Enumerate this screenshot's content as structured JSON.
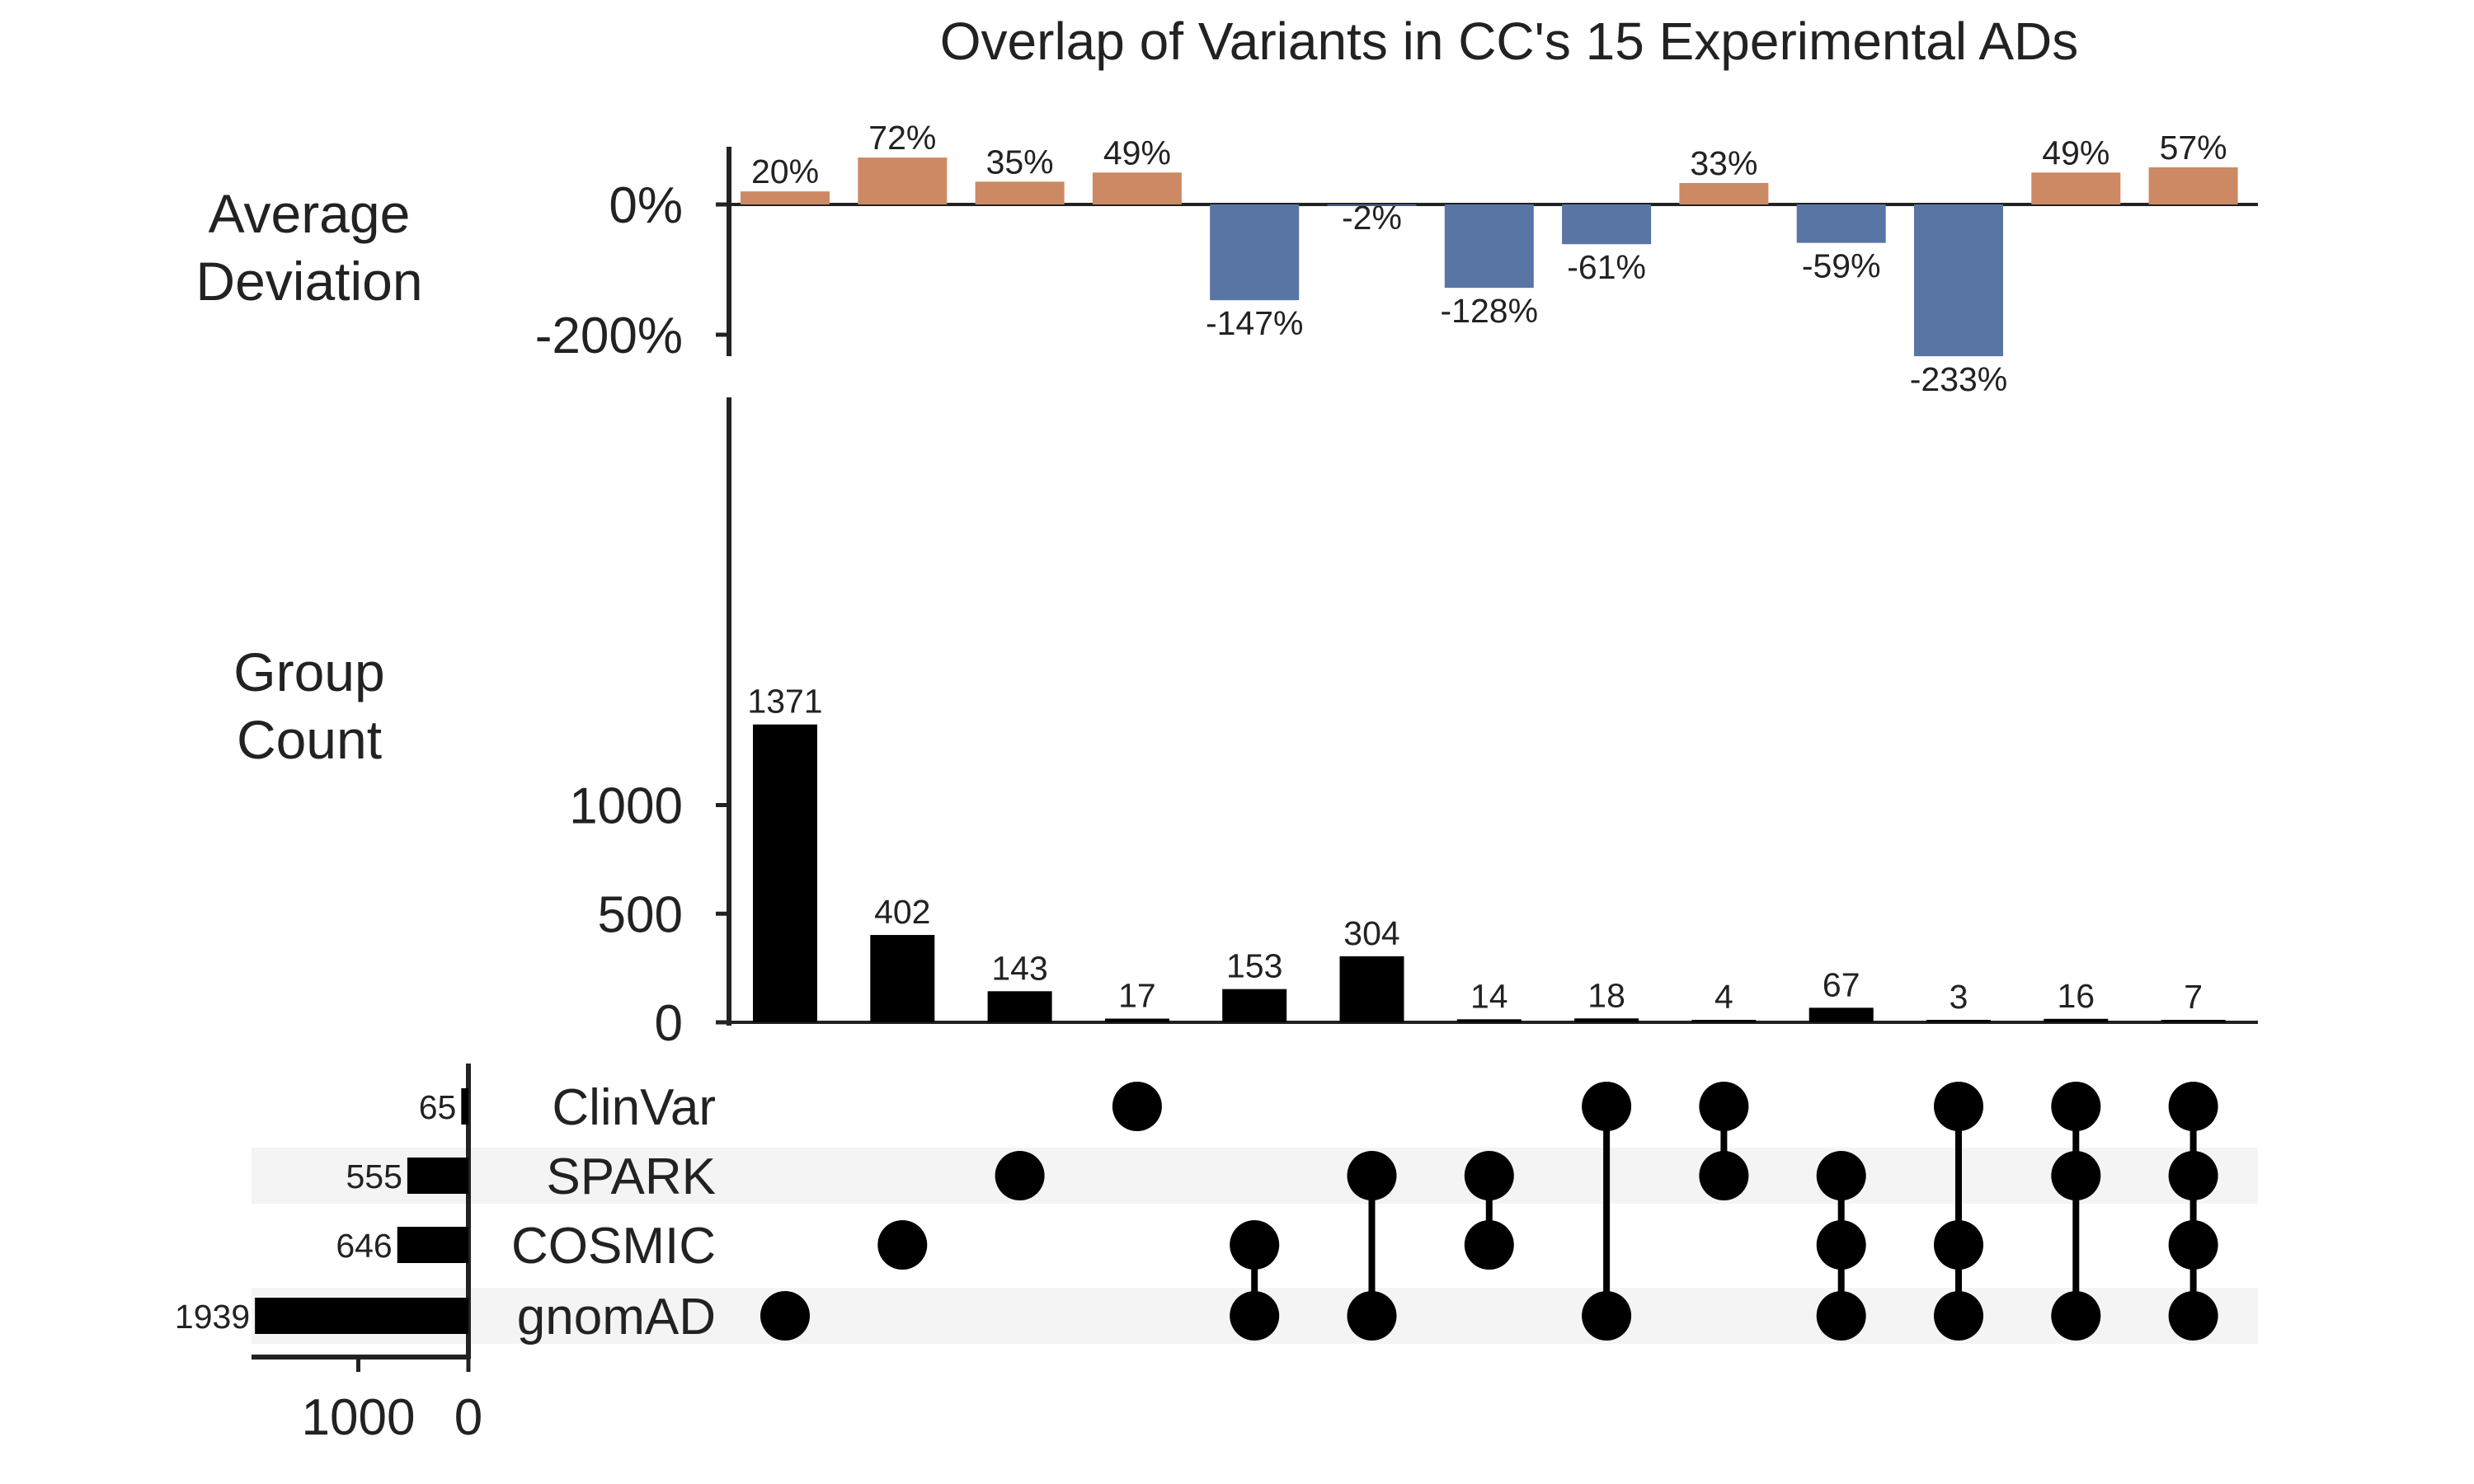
{
  "chart_data": {
    "type": "bar",
    "title": "Overlap of Variants in CC's 15 Experimental ADs",
    "deviation_panel": {
      "ylabel": [
        "Average",
        "Deviation"
      ],
      "yticks": [
        "0%",
        "-200%"
      ],
      "ytick_values": [
        0,
        -200
      ],
      "values": [
        20,
        72,
        35,
        49,
        -147,
        -2,
        -128,
        -61,
        33,
        -59,
        -233,
        49,
        57
      ],
      "labels": [
        "20%",
        "72%",
        "35%",
        "49%",
        "-147%",
        "-2%",
        "-128%",
        "-61%",
        "33%",
        "-59%",
        "-233%",
        "49%",
        "57%"
      ],
      "positive_color": "#CC8963",
      "negative_color": "#5975A4"
    },
    "count_panel": {
      "ylabel": [
        "Group",
        "Count"
      ],
      "yticks": [
        "0",
        "500",
        "1000"
      ],
      "ytick_values": [
        0,
        500,
        1000
      ],
      "values": [
        1371,
        402,
        143,
        17,
        153,
        304,
        14,
        18,
        4,
        67,
        3,
        16,
        7
      ],
      "labels": [
        "1371",
        "402",
        "143",
        "17",
        "153",
        "304",
        "14",
        "18",
        "4",
        "67",
        "3",
        "16",
        "7"
      ],
      "color": "#000000"
    },
    "sets": {
      "names": [
        "ClinVar",
        "SPARK",
        "COSMIC",
        "gnomAD"
      ],
      "sizes": [
        65,
        555,
        646,
        1939
      ],
      "size_labels": [
        "65",
        "555",
        "646",
        "1939"
      ],
      "xticks": [
        "1000",
        "0"
      ],
      "xtick_values": [
        1000,
        0
      ],
      "shaded_rows": [
        false,
        true,
        false,
        true
      ]
    },
    "memberships": [
      [
        "gnomAD"
      ],
      [
        "COSMIC"
      ],
      [
        "SPARK"
      ],
      [
        "ClinVar"
      ],
      [
        "COSMIC",
        "gnomAD"
      ],
      [
        "SPARK",
        "gnomAD"
      ],
      [
        "SPARK",
        "COSMIC"
      ],
      [
        "ClinVar",
        "gnomAD"
      ],
      [
        "ClinVar",
        "SPARK"
      ],
      [
        "SPARK",
        "COSMIC",
        "gnomAD"
      ],
      [
        "ClinVar",
        "COSMIC",
        "gnomAD"
      ],
      [
        "ClinVar",
        "SPARK",
        "gnomAD"
      ],
      [
        "ClinVar",
        "SPARK",
        "COSMIC",
        "gnomAD"
      ]
    ]
  }
}
